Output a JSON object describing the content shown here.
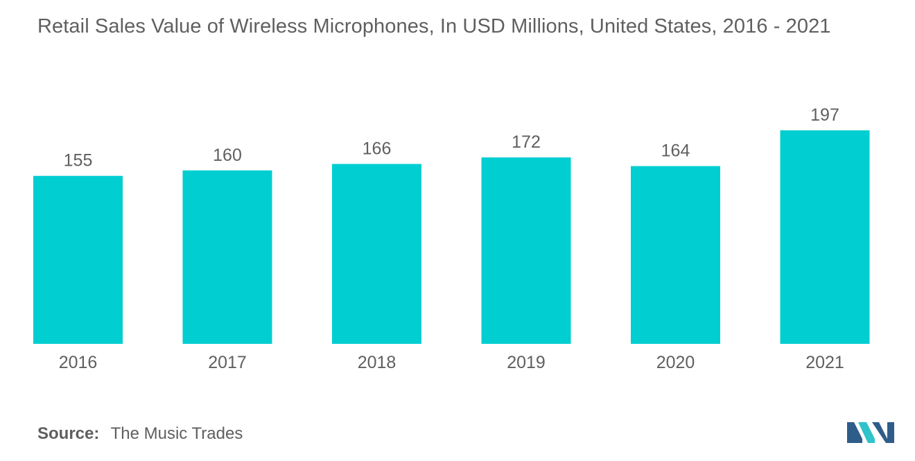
{
  "title": "Retail Sales Value of Wireless Microphones, In USD Millions, United States, 2016 - 2021",
  "source": {
    "label": "Source:",
    "text": "The Music Trades"
  },
  "colors": {
    "bar": "#00ced1",
    "text": "#5f5f5f",
    "logo_dark": "#2f5d8a",
    "logo_light": "#2ec4c9"
  },
  "logo": {
    "icon": "mordor-logo-icon"
  },
  "chart_data": {
    "type": "bar",
    "title": "Retail Sales Value of Wireless Microphones, In USD Millions, United States, 2016 - 2021",
    "categories": [
      "2016",
      "2017",
      "2018",
      "2019",
      "2020",
      "2021"
    ],
    "values": [
      155,
      160,
      166,
      172,
      164,
      197
    ],
    "xlabel": "",
    "ylabel": "",
    "ylim": [
      0,
      197
    ],
    "grid": false,
    "legend": "none",
    "data_labels": true
  }
}
